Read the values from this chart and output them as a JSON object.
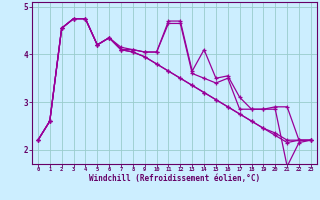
{
  "xlabel": "Windchill (Refroidissement éolien,°C)",
  "bg_color": "#cceeff",
  "line_color": "#990099",
  "grid_color": "#99cccc",
  "axis_color": "#660066",
  "tick_color": "#660066",
  "hours": [
    0,
    1,
    2,
    3,
    4,
    5,
    6,
    7,
    8,
    9,
    10,
    11,
    12,
    13,
    14,
    15,
    16,
    17,
    18,
    19,
    20,
    21,
    22,
    23
  ],
  "line1": [
    2.2,
    2.6,
    4.55,
    4.75,
    4.75,
    4.2,
    4.35,
    4.1,
    4.1,
    4.05,
    4.05,
    4.7,
    4.7,
    3.65,
    4.1,
    3.5,
    3.55,
    3.1,
    2.85,
    2.85,
    2.85,
    1.65,
    2.15,
    2.2
  ],
  "line2": [
    2.2,
    2.6,
    4.55,
    4.75,
    4.75,
    4.2,
    4.35,
    4.1,
    4.05,
    3.95,
    3.8,
    3.65,
    3.5,
    3.35,
    3.2,
    3.05,
    2.9,
    2.75,
    2.6,
    2.45,
    2.3,
    2.15,
    2.2,
    2.2
  ],
  "line3": [
    2.2,
    2.6,
    4.55,
    4.75,
    4.75,
    4.2,
    4.35,
    4.1,
    4.05,
    3.95,
    3.8,
    3.65,
    3.5,
    3.35,
    3.2,
    3.05,
    2.9,
    2.75,
    2.6,
    2.45,
    2.35,
    2.2,
    2.2,
    2.2
  ],
  "line4": [
    2.2,
    2.6,
    4.55,
    4.75,
    4.75,
    4.2,
    4.35,
    4.15,
    4.1,
    4.05,
    4.05,
    4.65,
    4.65,
    3.6,
    3.5,
    3.4,
    3.5,
    2.85,
    2.85,
    2.85,
    2.9,
    2.9,
    2.2,
    2.2
  ],
  "ylim": [
    1.7,
    5.1
  ],
  "yticks": [
    2,
    3,
    4,
    5
  ],
  "xticks": [
    0,
    1,
    2,
    3,
    4,
    5,
    6,
    7,
    8,
    9,
    10,
    11,
    12,
    13,
    14,
    15,
    16,
    17,
    18,
    19,
    20,
    21,
    22,
    23
  ]
}
